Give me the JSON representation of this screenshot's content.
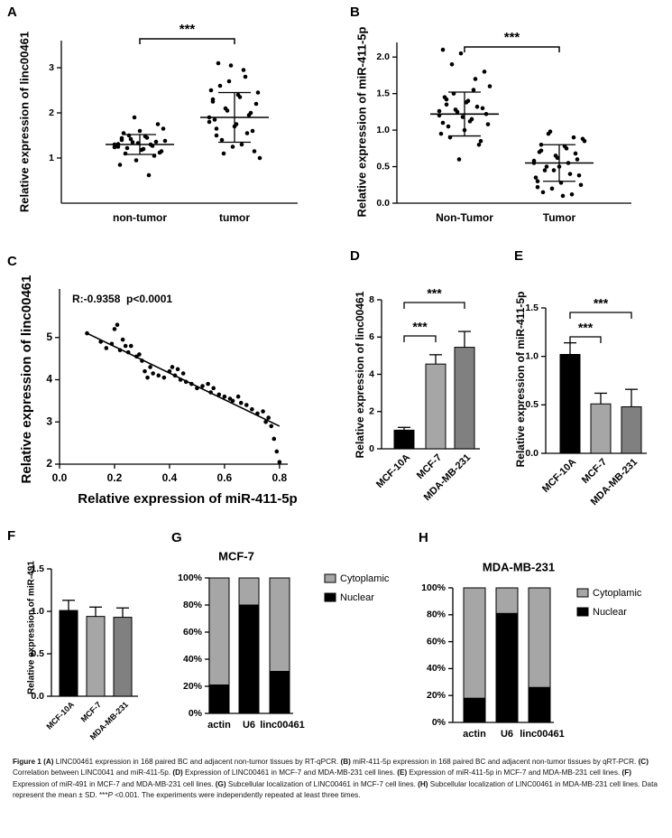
{
  "chart_data": [
    {
      "label": "A",
      "type": "dotplot",
      "y_label": "Relative expression of linc00461",
      "categories": [
        "non-tumor",
        "tumor"
      ],
      "points": [
        [
          1.3,
          1.25,
          1.4,
          1.1,
          1.5,
          1.35,
          0.95,
          1.6,
          1.2,
          1.45,
          1.3,
          1.05,
          1.75,
          1.15,
          1.38,
          1.28,
          0.85,
          1.55,
          1.22,
          1.42,
          1.9,
          1.33,
          1.18,
          1.48,
          0.62,
          1.27,
          1.36,
          1.12,
          1.65,
          1.24,
          1.31,
          1.44
        ],
        [
          1.9,
          2.3,
          1.5,
          2.6,
          1.1,
          2.05,
          3.05,
          1.7,
          2.4,
          1.3,
          2.8,
          1.95,
          1.6,
          2.2,
          1.0,
          2.5,
          1.85,
          3.1,
          1.4,
          2.1,
          2.7,
          1.25,
          1.75,
          2.35,
          2.95,
          1.55,
          2.0,
          1.15,
          2.45,
          1.8,
          2.25,
          1.65
        ]
      ],
      "mean": [
        1.3,
        1.9
      ],
      "sd": [
        0.22,
        0.55
      ],
      "ylim": [
        0,
        3.6
      ],
      "yticks": [
        1,
        2,
        3
      ],
      "annotation": "***",
      "color": "#000000"
    },
    {
      "label": "B",
      "type": "dotplot",
      "y_label": "Relative expression of miR-411-5p",
      "categories": [
        "Non-Tumor",
        "Tumor"
      ],
      "points": [
        [
          1.2,
          1.1,
          1.35,
          0.9,
          1.5,
          1.25,
          2.05,
          1.0,
          1.4,
          1.15,
          1.7,
          0.8,
          1.3,
          1.22,
          1.6,
          0.95,
          1.45,
          1.05,
          1.9,
          1.28,
          0.6,
          1.18,
          1.38,
          1.12,
          1.55,
          1.32,
          0.85,
          1.8,
          1.08,
          1.26,
          2.1,
          1.42
        ],
        [
          0.55,
          0.3,
          0.8,
          0.45,
          0.95,
          0.2,
          0.65,
          0.5,
          0.1,
          0.75,
          0.4,
          0.9,
          0.6,
          0.25,
          0.85,
          0.35,
          0.7,
          0.15,
          0.5,
          0.98,
          0.45,
          0.62,
          0.28,
          0.78,
          0.55,
          0.12,
          0.68,
          0.38,
          0.88,
          0.58,
          0.22,
          0.72
        ]
      ],
      "mean": [
        1.22,
        0.55
      ],
      "sd": [
        0.3,
        0.25
      ],
      "ylim": [
        0,
        2.2
      ],
      "yticks": [
        {
          "value": 0,
          "label": "0.0"
        },
        {
          "value": 0.5,
          "label": "0.5"
        },
        {
          "value": 1,
          "label": "1.0"
        },
        {
          "value": 1.5,
          "label": "1.5"
        },
        {
          "value": 2,
          "label": "2.0"
        }
      ],
      "annotation": "***",
      "color": "#000000"
    },
    {
      "label": "C",
      "type": "scatter",
      "x_label": "Relative expression of miR-411-5p",
      "y_label": "Relative expression of linc00461",
      "annotation": "R:-0.9358  p<0.0001",
      "x": [
        0.1,
        0.15,
        0.17,
        0.19,
        0.2,
        0.21,
        0.22,
        0.23,
        0.24,
        0.25,
        0.26,
        0.28,
        0.29,
        0.3,
        0.31,
        0.32,
        0.33,
        0.34,
        0.36,
        0.38,
        0.4,
        0.41,
        0.42,
        0.43,
        0.44,
        0.45,
        0.46,
        0.48,
        0.5,
        0.52,
        0.54,
        0.55,
        0.56,
        0.58,
        0.6,
        0.62,
        0.63,
        0.65,
        0.66,
        0.68,
        0.7,
        0.72,
        0.74,
        0.75,
        0.76,
        0.77,
        0.78,
        0.79,
        0.8
      ],
      "y": [
        5.1,
        4.9,
        4.75,
        4.85,
        5.2,
        5.3,
        4.7,
        4.95,
        4.8,
        4.65,
        4.8,
        4.55,
        4.6,
        4.45,
        4.2,
        4.05,
        4.3,
        4.15,
        4.1,
        4.05,
        4.2,
        4.3,
        4.1,
        4.25,
        4.0,
        4.15,
        3.95,
        3.9,
        3.8,
        3.85,
        3.9,
        3.7,
        3.8,
        3.65,
        3.6,
        3.55,
        3.5,
        3.6,
        3.45,
        3.4,
        3.3,
        3.2,
        3.25,
        3.0,
        3.1,
        2.9,
        2.6,
        2.3,
        2.05
      ],
      "fit": {
        "x": [
          0.1,
          0.8
        ],
        "y": [
          5.1,
          2.9
        ]
      },
      "xlim": [
        0,
        0.83
      ],
      "ylim": [
        2,
        6.15
      ],
      "xticks": [
        {
          "value": 0,
          "label": "0.0"
        },
        {
          "value": 0.2,
          "label": "0.2"
        },
        {
          "value": 0.4,
          "label": "0.4"
        },
        {
          "value": 0.6,
          "label": "0.6"
        },
        {
          "value": 0.8,
          "label": "0.8"
        }
      ],
      "yticks": [
        2,
        3,
        4,
        5
      ],
      "color": "#000000"
    },
    {
      "label": "D",
      "type": "bar",
      "y_label": "Relative expression of linc00461",
      "categories": [
        "MCF-10A",
        "MCF-7",
        "MDA-MB-231"
      ],
      "values": [
        1.0,
        4.55,
        5.45
      ],
      "errors": [
        0.15,
        0.5,
        0.85
      ],
      "colors": [
        "#000000",
        "#a6a6a6",
        "#808080"
      ],
      "ylim": [
        0,
        8
      ],
      "yticks": [
        0,
        2,
        4,
        6,
        8
      ],
      "annotations": [
        "***",
        "***"
      ]
    },
    {
      "label": "E",
      "type": "bar",
      "y_label": "Relative expression of miR-411-5p",
      "categories": [
        "MCF-10A",
        "MCF-7",
        "MDA-MB-231"
      ],
      "values": [
        1.02,
        0.51,
        0.48
      ],
      "errors": [
        0.12,
        0.11,
        0.18
      ],
      "colors": [
        "#000000",
        "#a6a6a6",
        "#808080"
      ],
      "ylim": [
        0,
        1.5
      ],
      "yticks": [
        {
          "value": 0,
          "label": "0.0"
        },
        {
          "value": 0.5,
          "label": "0.5"
        },
        {
          "value": 1,
          "label": "1.0"
        },
        {
          "value": 1.5,
          "label": "1.5"
        }
      ],
      "annotations": [
        "***",
        "***"
      ]
    },
    {
      "label": "F",
      "type": "bar",
      "y_label": "Relative expression of miR-491",
      "categories": [
        "MCF-10A",
        "MCF-7",
        "MDA-MB-231"
      ],
      "values": [
        1.01,
        0.94,
        0.93
      ],
      "errors": [
        0.12,
        0.11,
        0.11
      ],
      "colors": [
        "#000000",
        "#a6a6a6",
        "#808080"
      ],
      "ylim": [
        0,
        1.5
      ],
      "yticks": [
        {
          "value": 0,
          "label": "0.0"
        },
        {
          "value": 0.5,
          "label": "0.5"
        },
        {
          "value": 1,
          "label": "1.0"
        },
        {
          "value": 1.5,
          "label": "1.5"
        }
      ]
    },
    {
      "label": "G",
      "type": "stacked_bar",
      "title": "MCF-7",
      "categories": [
        "actin",
        "U6",
        "linc00461"
      ],
      "series": [
        {
          "name": "Nuclear",
          "color": "#000000",
          "values": [
            21,
            80,
            31
          ]
        },
        {
          "name": "Cytoplamic",
          "color": "#a6a6a6",
          "values": [
            79,
            20,
            69
          ]
        }
      ],
      "ylim": [
        0,
        100
      ],
      "yticks": [
        {
          "value": 0,
          "label": "0%"
        },
        {
          "value": 20,
          "label": "20%"
        },
        {
          "value": 40,
          "label": "40%"
        },
        {
          "value": 60,
          "label": "60%"
        },
        {
          "value": 80,
          "label": "80%"
        },
        {
          "value": 100,
          "label": "100%"
        }
      ]
    },
    {
      "label": "H",
      "type": "stacked_bar",
      "title": "MDA-MB-231",
      "categories": [
        "actin",
        "U6",
        "linc00461"
      ],
      "series": [
        {
          "name": "Nuclear",
          "color": "#000000",
          "values": [
            18,
            81,
            26
          ]
        },
        {
          "name": "Cytoplamic",
          "color": "#a6a6a6",
          "values": [
            82,
            19,
            74
          ]
        }
      ],
      "ylim": [
        0,
        100
      ],
      "yticks": [
        {
          "value": 0,
          "label": "0%"
        },
        {
          "value": 20,
          "label": "20%"
        },
        {
          "value": 40,
          "label": "40%"
        },
        {
          "value": 60,
          "label": "60%"
        },
        {
          "value": 80,
          "label": "80%"
        },
        {
          "value": 100,
          "label": "100%"
        }
      ]
    }
  ],
  "caption": [
    {
      "text": "Figure 1 ",
      "bold": true
    },
    {
      "text": "(A)",
      "bold": true
    },
    {
      "text": " LINC00461 expression in 168 paired BC and adjacent non-tumor tissues by RT-qPCR. "
    },
    {
      "text": "(B)",
      "bold": true
    },
    {
      "text": " miR-411-5p expression in 168 paired BC and adjacent non-tumor tissues by qRT-PCR. "
    },
    {
      "text": "(C)",
      "bold": true
    },
    {
      "text": " Correlation between LINC0041 and miR-411-5p. "
    },
    {
      "text": "(D)",
      "bold": true
    },
    {
      "text": " Expression of LINC00461 in MCF-7 and MDA-MB-231 cell lines. "
    },
    {
      "text": "(E)",
      "bold": true
    },
    {
      "text": " Expression of miR-411-5p in MCF-7 and MDA-MB-231 cell lines. "
    },
    {
      "text": "(F)",
      "bold": true
    },
    {
      "text": " Expression of miR-491 in MCF-7 and MDA-MB-231 cell lines. "
    },
    {
      "text": "(G)",
      "bold": true
    },
    {
      "text": " Subcellular localization of LINC00461 in MCF-7 cell lines. "
    },
    {
      "text": "(H)",
      "bold": true
    },
    {
      "text": " Subcellular localization of LINC00461 in MDA-MB-231 cell lines. Data represent the mean ± SD. ***"
    },
    {
      "text": "P",
      "italic": true
    },
    {
      "text": " <0.001. The experiments were independently repeated at least three times."
    }
  ]
}
